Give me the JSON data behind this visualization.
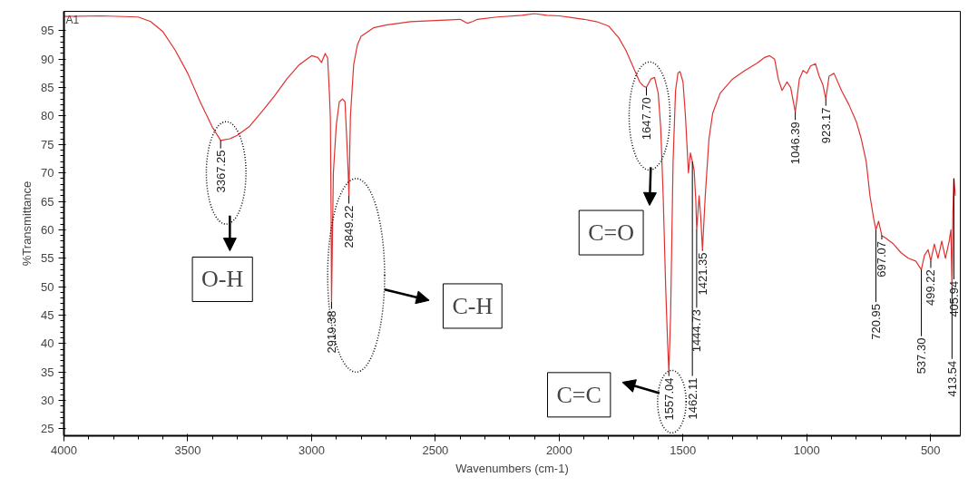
{
  "chart_data": {
    "type": "line",
    "title": "A1",
    "xlabel": "Wavenumbers (cm-1)",
    "ylabel": "%Transmittance",
    "xlim": [
      4000,
      380
    ],
    "ylim": [
      23.8,
      98.4
    ],
    "xticks": [
      4000,
      3500,
      3000,
      2500,
      2000,
      1500,
      1000,
      500
    ],
    "yticks": [
      25,
      30,
      35,
      40,
      45,
      50,
      55,
      60,
      65,
      70,
      75,
      80,
      85,
      90,
      95
    ],
    "grid": false,
    "series": [
      {
        "color": "#e03030",
        "x": [
          4000,
          3850,
          3700,
          3650,
          3600,
          3550,
          3500,
          3450,
          3400,
          3367.25,
          3330,
          3300,
          3250,
          3200,
          3150,
          3100,
          3050,
          3000,
          2975,
          2960,
          2945,
          2935,
          2928,
          2924,
          2921,
          2919.38,
          2912,
          2900,
          2888,
          2875,
          2865,
          2858,
          2852,
          2849.22,
          2843,
          2830,
          2815,
          2800,
          2750,
          2700,
          2600,
          2500,
          2400,
          2370,
          2350,
          2330,
          2250,
          2150,
          2100,
          2050,
          2000,
          1950,
          1900,
          1850,
          1800,
          1760,
          1730,
          1700,
          1675,
          1660,
          1647.7,
          1630,
          1615,
          1600,
          1590,
          1580,
          1570,
          1562,
          1557.04,
          1550,
          1540,
          1530,
          1520,
          1512,
          1500,
          1490,
          1478,
          1470,
          1462.11,
          1455,
          1448,
          1444.73,
          1435,
          1428,
          1421.35,
          1410,
          1395,
          1380,
          1350,
          1300,
          1250,
          1200,
          1170,
          1150,
          1130,
          1115,
          1100,
          1080,
          1065,
          1046.39,
          1030,
          1015,
          1000,
          985,
          965,
          950,
          935,
          923.17,
          910,
          890,
          860,
          830,
          800,
          780,
          760,
          745,
          730,
          720.95,
          710,
          697.07,
          680,
          650,
          620,
          590,
          560,
          537.3,
          525,
          510,
          499.22,
          485,
          470,
          455,
          440,
          425,
          418,
          413.54,
          410,
          405.94,
          400
        ],
        "values": [
          97.5,
          97.6,
          97.4,
          96.6,
          94.8,
          91.5,
          87.5,
          82.5,
          78.0,
          75.7,
          76.0,
          76.6,
          78.2,
          80.8,
          83.5,
          86.5,
          89.0,
          90.6,
          90.3,
          89.4,
          91.0,
          90.2,
          84.0,
          79.5,
          62.0,
          47.3,
          70.0,
          78.5,
          82.5,
          83.0,
          82.5,
          76.0,
          70.0,
          66.0,
          80.0,
          89.0,
          92.5,
          94.0,
          95.5,
          96.0,
          96.6,
          96.8,
          97.0,
          96.3,
          96.6,
          97.0,
          97.4,
          97.7,
          98.0,
          97.7,
          97.6,
          97.3,
          97.0,
          96.6,
          95.8,
          93.8,
          91.5,
          88.5,
          86.0,
          85.3,
          85.0,
          86.5,
          86.8,
          84.0,
          78.0,
          66.0,
          50.0,
          40.0,
          35.0,
          45.0,
          72.0,
          84.5,
          87.6,
          87.8,
          86.0,
          80.0,
          70.0,
          73.5,
          72.0,
          70.5,
          65.0,
          60.0,
          66.0,
          62.0,
          56.5,
          66.0,
          76.0,
          80.5,
          84.0,
          86.5,
          88.0,
          89.3,
          90.3,
          90.6,
          90.0,
          86.5,
          84.5,
          86.0,
          85.0,
          80.7,
          86.5,
          88.0,
          87.5,
          88.8,
          89.2,
          87.0,
          85.5,
          83.0,
          87.0,
          87.5,
          84.5,
          82.0,
          79.0,
          76.0,
          72.0,
          66.0,
          62.0,
          60.0,
          61.5,
          59.0,
          58.5,
          57.5,
          56.0,
          55.0,
          54.5,
          53.0,
          55.5,
          56.5,
          54.5,
          57.5,
          55.0,
          58.0,
          55.0,
          58.0,
          60.0,
          50.0,
          63.0,
          69.0,
          66.0
        ]
      }
    ],
    "annotations": [
      {
        "text": "3367.25",
        "x": 3367.25,
        "y": 75.7
      },
      {
        "text": "2919.38",
        "x": 2919.38,
        "y": 47.3
      },
      {
        "text": "2849.22",
        "x": 2849.22,
        "y": 66.0
      },
      {
        "text": "1647.70",
        "x": 1647.7,
        "y": 85.0
      },
      {
        "text": "1557.04",
        "x": 1557.04,
        "y": 35.0
      },
      {
        "text": "1462.11",
        "x": 1462.11,
        "y": 72.0
      },
      {
        "text": "1444.73",
        "x": 1444.73,
        "y": 60.0
      },
      {
        "text": "1421.35",
        "x": 1421.35,
        "y": 56.5
      },
      {
        "text": "1046.39",
        "x": 1046.39,
        "y": 80.7
      },
      {
        "text": "923.17",
        "x": 923.17,
        "y": 83.0
      },
      {
        "text": "720.95",
        "x": 720.95,
        "y": 60.0
      },
      {
        "text": "697.07",
        "x": 697.07,
        "y": 59.0
      },
      {
        "text": "537.30",
        "x": 537.3,
        "y": 53.0
      },
      {
        "text": "499.22",
        "x": 499.22,
        "y": 54.5
      },
      {
        "text": "413.54",
        "x": 413.54,
        "y": 50.0
      },
      {
        "text": "405.94",
        "x": 405.94,
        "y": 69.0
      },
      "O-H",
      "C-H",
      "C=O",
      "C=C"
    ]
  }
}
